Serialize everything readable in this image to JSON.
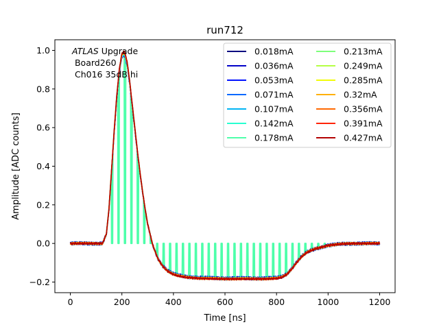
{
  "chart_data": {
    "type": "line",
    "title": "run712",
    "xlabel": "Time [ns]",
    "ylabel": "Amplitude [ADC counts]",
    "xlim": [
      -60,
      1260
    ],
    "ylim": [
      -0.255,
      1.055
    ],
    "xticks": [
      0,
      200,
      400,
      600,
      800,
      1000,
      1200
    ],
    "yticks": [
      -0.2,
      0.0,
      0.2,
      0.4,
      0.6,
      0.8,
      1.0
    ],
    "xtick_labels": [
      "0",
      "200",
      "400",
      "600",
      "800",
      "1000",
      "1200"
    ],
    "ytick_labels": [
      "−0.2",
      "0.0",
      "0.2",
      "0.4",
      "0.6",
      "0.8",
      "1.0"
    ],
    "grid": false,
    "legend_position": "top-right",
    "legend_columns": 2,
    "annotation": {
      "line1_italic": "ATLAS",
      "line1_rest": " Upgrade",
      "line2": " Board260",
      "line3": " Ch016 35dB hi"
    },
    "pulse_shape": {
      "x": [
        0,
        125,
        140,
        150,
        160,
        170,
        180,
        190,
        200,
        210,
        220,
        230,
        240,
        250,
        260,
        270,
        280,
        290,
        300,
        320,
        340,
        360,
        380,
        400,
        420,
        450,
        500,
        550,
        600,
        650,
        700,
        750,
        800,
        820,
        840,
        860,
        880,
        900,
        920,
        950,
        1000,
        1050,
        1100,
        1200
      ],
      "y": [
        0.0,
        0.0,
        0.05,
        0.18,
        0.38,
        0.58,
        0.76,
        0.9,
        0.98,
        0.99,
        0.94,
        0.84,
        0.72,
        0.6,
        0.48,
        0.37,
        0.27,
        0.18,
        0.1,
        -0.01,
        -0.08,
        -0.12,
        -0.145,
        -0.16,
        -0.168,
        -0.175,
        -0.18,
        -0.182,
        -0.183,
        -0.183,
        -0.183,
        -0.183,
        -0.181,
        -0.175,
        -0.16,
        -0.13,
        -0.095,
        -0.065,
        -0.045,
        -0.028,
        -0.01,
        -0.003,
        0.0,
        0.0
      ]
    },
    "series": [
      {
        "name": "0.018mA",
        "color": "#00007f"
      },
      {
        "name": "0.036mA",
        "color": "#0000c8"
      },
      {
        "name": "0.053mA",
        "color": "#0010ff"
      },
      {
        "name": "0.071mA",
        "color": "#0068ff"
      },
      {
        "name": "0.107mA",
        "color": "#00b4f4"
      },
      {
        "name": "0.142mA",
        "color": "#26ffd1"
      },
      {
        "name": "0.178mA",
        "color": "#4dffaa",
        "gappy": true
      },
      {
        "name": "0.213mA",
        "color": "#7dff7a"
      },
      {
        "name": "0.249mA",
        "color": "#b4ff43"
      },
      {
        "name": "0.285mA",
        "color": "#f1fc06"
      },
      {
        "name": "0.32mA",
        "color": "#ffb000"
      },
      {
        "name": "0.356mA",
        "color": "#ff6800"
      },
      {
        "name": "0.391mA",
        "color": "#ff2400"
      },
      {
        "name": "0.427mA",
        "color": "#b20000"
      }
    ]
  }
}
